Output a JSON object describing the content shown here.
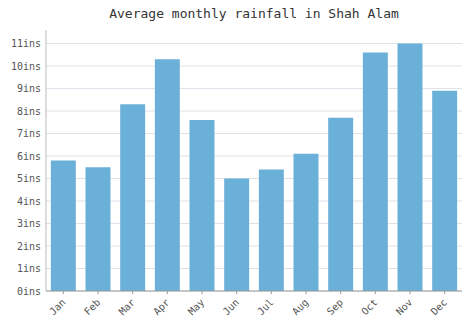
{
  "chart_data": {
    "type": "bar",
    "title": "Average monthly rainfall in Shah Alam",
    "categories": [
      "Jan",
      "Feb",
      "Mar",
      "Apr",
      "May",
      "Jun",
      "Jul",
      "Aug",
      "Sep",
      "Oct",
      "Nov",
      "Dec"
    ],
    "values": [
      5.8,
      5.5,
      8.3,
      10.3,
      7.6,
      5.0,
      5.4,
      6.1,
      7.7,
      10.6,
      11.0,
      8.9
    ],
    "color": "#6ab0d8",
    "ylim": [
      0,
      11.6
    ],
    "yticks": [
      {
        "value": 0,
        "label": "0ins"
      },
      {
        "value": 1,
        "label": "1ins"
      },
      {
        "value": 2,
        "label": "2ins"
      },
      {
        "value": 3,
        "label": "3ins"
      },
      {
        "value": 4,
        "label": "4ins"
      },
      {
        "value": 5,
        "label": "5ins"
      },
      {
        "value": 6,
        "label": "6ins"
      },
      {
        "value": 7,
        "label": "7ins"
      },
      {
        "value": 8,
        "label": "8ins"
      },
      {
        "value": 9,
        "label": "9ins"
      },
      {
        "value": 10,
        "label": "10ins"
      },
      {
        "value": 11,
        "label": "11ins"
      }
    ],
    "grid": true
  }
}
